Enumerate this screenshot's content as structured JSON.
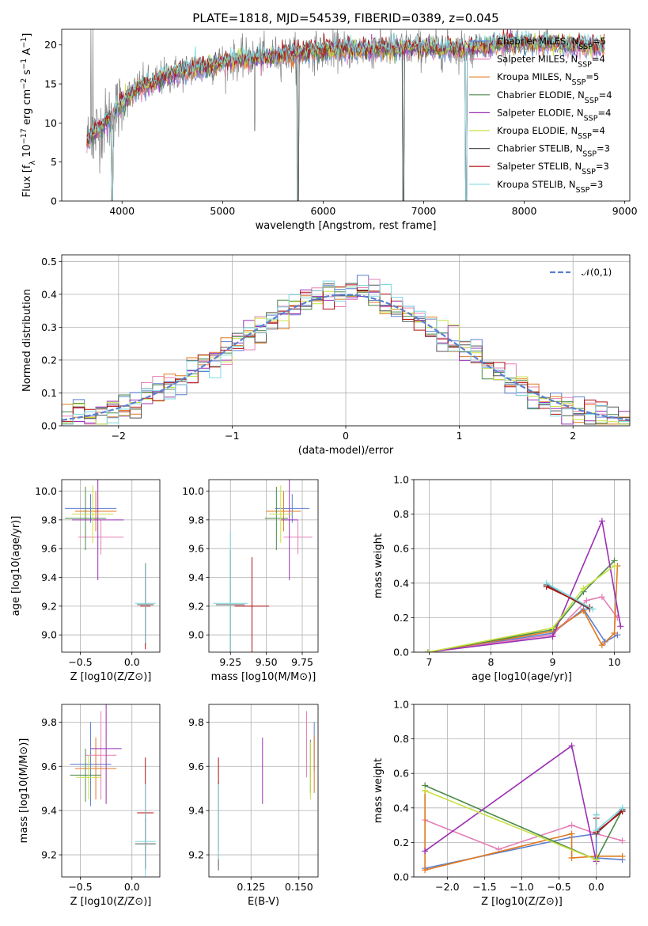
{
  "figure": {
    "title": "PLATE=1818, MJD=54539, FIBERID=0389, z=0.045"
  },
  "colors": {
    "Chabrier MILES": "#5b7fd0",
    "Salpeter MILES": "#e57fb5",
    "Kroupa MILES": "#e07a20",
    "Chabrier ELODIE": "#4a8a4a",
    "Salpeter ELODIE": "#9b30b4",
    "Kroupa ELODIE": "#c8e040",
    "Chabrier STELIB": "#555555",
    "Salpeter STELIB": "#b01010",
    "Kroupa STELIB": "#7fd8e0",
    "normal": "#5b7fd0",
    "grid": "#b0b0b0"
  },
  "chart_data": [
    {
      "id": "spectrum",
      "type": "line",
      "title": "PLATE=1818, MJD=54539, FIBERID=0389, z=0.045",
      "xlabel": "wavelength [Angstrom, rest frame]",
      "ylabel": "Flux [f_λ 10^-17 erg cm^-2 s^-1 A^-1]",
      "xlim": [
        3400,
        9050
      ],
      "ylim": [
        0,
        22
      ],
      "xticks": [
        4000,
        5000,
        6000,
        7000,
        8000,
        9000
      ],
      "yticks": [
        0,
        5,
        10,
        15,
        20
      ],
      "grid": false,
      "legend_position": "right",
      "legend": [
        "Chabrier MILES, N_SSP=5",
        "Salpeter MILES, N_SSP=4",
        "Kroupa MILES, N_SSP=5",
        "Chabrier ELODIE, N_SSP=4",
        "Salpeter ELODIE, N_SSP=4",
        "Kroupa ELODIE, N_SSP=4",
        "Chabrier STELIB, N_SSP=3",
        "Salpeter STELIB, N_SSP=3",
        "Kroupa STELIB, N_SSP=3"
      ],
      "continuum": {
        "x": [
          3650,
          3700,
          3800,
          3900,
          4000,
          4100,
          4200,
          4300,
          4400,
          4600,
          4800,
          5000,
          5200,
          5400,
          5600,
          5800,
          6000,
          6200,
          6400,
          6600,
          6800,
          7000,
          7200,
          7400,
          7600,
          7800,
          8000,
          8200,
          8400,
          8600,
          8800
        ],
        "y": [
          7.5,
          8.5,
          9.5,
          11.0,
          12.5,
          13.8,
          14.8,
          15.0,
          15.8,
          16.6,
          17.2,
          17.8,
          18.2,
          18.5,
          18.7,
          19.0,
          19.3,
          19.4,
          19.4,
          19.5,
          19.6,
          19.6,
          19.5,
          19.6,
          19.8,
          20.1,
          20.3,
          20.2,
          20.0,
          19.9,
          19.8
        ]
      },
      "model_drops_at": [
        3900,
        5750,
        6800,
        7420
      ],
      "noise_drop_at": 5320
    },
    {
      "id": "residual-histogram",
      "type": "histogram",
      "xlabel": "(data-model)/error",
      "ylabel": "Normed distribution",
      "xlim": [
        -2.5,
        2.5
      ],
      "ylim": [
        0,
        0.52
      ],
      "xticks": [
        -2,
        -1,
        0,
        1,
        2
      ],
      "yticks": [
        0.0,
        0.1,
        0.2,
        0.3,
        0.4,
        0.5
      ],
      "grid": true,
      "legend_position": "top-right",
      "legend": [
        "𝒩(0,1)"
      ],
      "bin_width": 0.1,
      "normal_curve": {
        "mean": 0,
        "sigma": 1
      }
    },
    {
      "id": "age-vs-Z",
      "type": "errorbar",
      "xlabel": "Z [log10(Z/Z⊙)]",
      "ylabel": "age  [log10(age/yr)]",
      "xlim": [
        -0.68,
        0.27
      ],
      "ylim": [
        8.88,
        10.08
      ],
      "xticks": [
        -0.5,
        0.0
      ],
      "xtick_labels": [
        "−0.5",
        "0.0"
      ],
      "yticks": [
        9.0,
        9.2,
        9.4,
        9.6,
        9.8,
        10.0
      ],
      "grid": true,
      "points": [
        {
          "model": "Chabrier MILES",
          "x": -0.4,
          "xerr": 0.25,
          "y": 9.88,
          "yerr": 0.1
        },
        {
          "model": "Salpeter MILES",
          "x": -0.3,
          "xerr": 0.22,
          "y": 9.68,
          "yerr": 0.12
        },
        {
          "model": "Kroupa MILES",
          "x": -0.35,
          "xerr": 0.2,
          "y": 9.86,
          "yerr": 0.14
        },
        {
          "model": "Chabrier ELODIE",
          "x": -0.45,
          "xerr": 0.2,
          "y": 9.81,
          "yerr": 0.22
        },
        {
          "model": "Salpeter ELODIE",
          "x": -0.33,
          "xerr": 0.25,
          "y": 9.8,
          "yerr": 0.42
        },
        {
          "model": "Kroupa ELODIE",
          "x": -0.38,
          "xerr": 0.2,
          "y": 9.84,
          "yerr": 0.2
        },
        {
          "model": "Chabrier STELIB",
          "x": 0.13,
          "xerr": 0.08,
          "y": 9.21,
          "yerr": 0.28
        },
        {
          "model": "Salpeter STELIB",
          "x": 0.13,
          "xerr": 0.05,
          "y": 9.2,
          "yerr": 0.3
        },
        {
          "model": "Kroupa STELIB",
          "x": 0.13,
          "xerr": 0.1,
          "y": 9.22,
          "yerr": 0.28
        }
      ]
    },
    {
      "id": "age-vs-mass",
      "type": "errorbar",
      "xlabel": "mass [log10(M/M⊙)]",
      "ylabel": "",
      "xlim": [
        9.1,
        9.86
      ],
      "ylim": [
        8.88,
        10.08
      ],
      "xticks": [
        9.25,
        9.5,
        9.75
      ],
      "yticks": [
        9.0,
        9.2,
        9.4,
        9.6,
        9.8,
        10.0
      ],
      "grid": true,
      "points": [
        {
          "model": "Chabrier MILES",
          "x": 9.68,
          "xerr": 0.12,
          "y": 9.88,
          "yerr": 0.1
        },
        {
          "model": "Salpeter MILES",
          "x": 9.72,
          "xerr": 0.1,
          "y": 9.68,
          "yerr": 0.12
        },
        {
          "model": "Kroupa MILES",
          "x": 9.62,
          "xerr": 0.12,
          "y": 9.86,
          "yerr": 0.14
        },
        {
          "model": "Chabrier ELODIE",
          "x": 9.57,
          "xerr": 0.08,
          "y": 9.81,
          "yerr": 0.22
        },
        {
          "model": "Salpeter ELODIE",
          "x": 9.66,
          "xerr": 0.06,
          "y": 9.8,
          "yerr": 0.42
        },
        {
          "model": "Kroupa ELODIE",
          "x": 9.6,
          "xerr": 0.08,
          "y": 9.84,
          "yerr": 0.2
        },
        {
          "model": "Chabrier STELIB",
          "x": 9.25,
          "xerr": 0.1,
          "y": 9.21,
          "yerr": 0.38
        },
        {
          "model": "Salpeter STELIB",
          "x": 9.4,
          "xerr": 0.12,
          "y": 9.2,
          "yerr": 0.34
        },
        {
          "model": "Kroupa STELIB",
          "x": 9.25,
          "xerr": 0.12,
          "y": 9.22,
          "yerr": 0.5
        }
      ]
    },
    {
      "id": "weight-vs-age",
      "type": "line",
      "xlabel": "age  [log10(age/yr)]",
      "ylabel": "mass weight",
      "xlim": [
        6.75,
        10.25
      ],
      "ylim": [
        0,
        1.0
      ],
      "xticks": [
        7,
        8,
        9,
        10
      ],
      "yticks": [
        0.0,
        0.2,
        0.4,
        0.6,
        0.8,
        1.0
      ],
      "grid": true,
      "series": [
        {
          "model": "Chabrier MILES",
          "x": [
            6.98,
            9.0,
            9.5,
            9.85,
            10.05
          ],
          "y": [
            0.0,
            0.11,
            0.25,
            0.06,
            0.1
          ]
        },
        {
          "model": "Salpeter MILES",
          "x": [
            6.98,
            9.0,
            9.55,
            9.8,
            10.05
          ],
          "y": [
            0.0,
            0.1,
            0.3,
            0.32,
            0.2
          ]
        },
        {
          "model": "Kroupa MILES",
          "x": [
            6.98,
            9.0,
            9.5,
            9.8,
            10.0,
            10.05
          ],
          "y": [
            0.0,
            0.12,
            0.24,
            0.04,
            0.11,
            0.5
          ]
        },
        {
          "model": "Chabrier ELODIE",
          "x": [
            6.98,
            9.0,
            9.5,
            10.0
          ],
          "y": [
            0.0,
            0.13,
            0.35,
            0.53
          ]
        },
        {
          "model": "Salpeter ELODIE",
          "x": [
            6.98,
            9.0,
            9.8,
            10.1
          ],
          "y": [
            0.0,
            0.09,
            0.76,
            0.15
          ]
        },
        {
          "model": "Kroupa ELODIE",
          "x": [
            6.98,
            9.0,
            9.5,
            10.0
          ],
          "y": [
            0.0,
            0.14,
            0.37,
            0.5
          ]
        },
        {
          "model": "Chabrier STELIB",
          "x": [
            8.9,
            9.6
          ],
          "y": [
            0.39,
            0.25
          ]
        },
        {
          "model": "Salpeter STELIB",
          "x": [
            8.9,
            9.6
          ],
          "y": [
            0.38,
            0.26
          ]
        },
        {
          "model": "Kroupa STELIB",
          "x": [
            8.9,
            9.65
          ],
          "y": [
            0.4,
            0.25
          ]
        }
      ]
    },
    {
      "id": "mass-vs-Z",
      "type": "errorbar",
      "xlabel": "Z [log10(Z/Z⊙)]",
      "ylabel": "mass [log10(M/M⊙)]",
      "xlim": [
        -0.68,
        0.27
      ],
      "ylim": [
        9.1,
        9.88
      ],
      "xticks": [
        -0.5,
        0.0
      ],
      "xtick_labels": [
        "−0.5",
        "0.0"
      ],
      "yticks": [
        9.2,
        9.4,
        9.6,
        9.8
      ],
      "grid": true,
      "points": [
        {
          "model": "Chabrier MILES",
          "x": -0.4,
          "xerr": 0.2,
          "y": 9.61,
          "yerr": 0.19
        },
        {
          "model": "Salpeter MILES",
          "x": -0.3,
          "xerr": 0.15,
          "y": 9.65,
          "yerr": 0.2
        },
        {
          "model": "Kroupa MILES",
          "x": -0.35,
          "xerr": 0.2,
          "y": 9.59,
          "yerr": 0.14
        },
        {
          "model": "Chabrier ELODIE",
          "x": -0.45,
          "xerr": 0.15,
          "y": 9.56,
          "yerr": 0.12
        },
        {
          "model": "Salpeter ELODIE",
          "x": -0.25,
          "xerr": 0.15,
          "y": 9.68,
          "yerr": 0.25
        },
        {
          "model": "Kroupa ELODIE",
          "x": -0.42,
          "xerr": 0.12,
          "y": 9.55,
          "yerr": 0.1
        },
        {
          "model": "Chabrier STELIB",
          "x": 0.13,
          "xerr": 0.1,
          "y": 9.25,
          "yerr": 0.12
        },
        {
          "model": "Salpeter STELIB",
          "x": 0.13,
          "xerr": 0.08,
          "y": 9.39,
          "yerr": 0.25
        },
        {
          "model": "Kroupa STELIB",
          "x": 0.13,
          "xerr": 0.1,
          "y": 9.26,
          "yerr": 0.26
        }
      ]
    },
    {
      "id": "mass-vs-EBV",
      "type": "errorbar",
      "xlabel": "E(B-V)",
      "ylabel": "",
      "xlim": [
        0.103,
        0.16
      ],
      "ylim": [
        9.1,
        9.88
      ],
      "xticks": [
        0.125,
        0.15
      ],
      "yticks": [
        9.2,
        9.4,
        9.6,
        9.8
      ],
      "grid": true,
      "points": [
        {
          "model": "Chabrier MILES",
          "x": 0.158,
          "xerr": 0,
          "y": 9.69,
          "yerr": 0.11
        },
        {
          "model": "Salpeter MILES",
          "x": 0.154,
          "xerr": 0,
          "y": 9.7,
          "yerr": 0.15
        },
        {
          "model": "Kroupa MILES",
          "x": 0.158,
          "xerr": 0,
          "y": 9.61,
          "yerr": 0.13
        },
        {
          "model": "Chabrier ELODIE",
          "x": 0.156,
          "xerr": 0,
          "y": 9.6,
          "yerr": 0.12
        },
        {
          "model": "Salpeter ELODIE",
          "x": 0.131,
          "xerr": 0,
          "y": 9.58,
          "yerr": 0.15
        },
        {
          "model": "Kroupa ELODIE",
          "x": 0.156,
          "xerr": 0,
          "y": 9.58,
          "yerr": 0.13
        },
        {
          "model": "Chabrier STELIB",
          "x": 0.108,
          "xerr": 0,
          "y": 9.33,
          "yerr": 0.2
        },
        {
          "model": "Salpeter STELIB",
          "x": 0.108,
          "xerr": 0,
          "y": 9.43,
          "yerr": 0.21
        },
        {
          "model": "Kroupa STELIB",
          "x": 0.108,
          "xerr": 0,
          "y": 9.35,
          "yerr": 0.17
        }
      ]
    },
    {
      "id": "weight-vs-Z",
      "type": "line",
      "xlabel": "Z [log10(Z/Z⊙)]",
      "ylabel": "mass weight",
      "xlim": [
        -2.45,
        0.45
      ],
      "ylim": [
        0,
        1.0
      ],
      "xticks": [
        -2.0,
        -1.5,
        -1.0,
        -0.5,
        0.0
      ],
      "xtick_labels": [
        "−2.0",
        "−1.5",
        "−1.0",
        "−0.5",
        "0.0"
      ],
      "yticks": [
        0.0,
        0.2,
        0.4,
        0.6,
        0.8,
        1.0
      ],
      "grid": true,
      "series": [
        {
          "model": "Chabrier MILES",
          "x": [
            -2.3,
            -0.33,
            0.0,
            0.0,
            0.35
          ],
          "y": [
            0.05,
            0.23,
            0.25,
            0.11,
            0.1
          ]
        },
        {
          "model": "Salpeter MILES",
          "x": [
            -2.3,
            -1.31,
            -0.33,
            0.0,
            0.35
          ],
          "y": [
            0.33,
            0.16,
            0.3,
            0.25,
            0.21
          ]
        },
        {
          "model": "Kroupa MILES",
          "x": [
            -2.3,
            -2.3,
            -0.33,
            -0.33,
            0.0,
            0.35
          ],
          "y": [
            0.5,
            0.04,
            0.25,
            0.11,
            0.12,
            0.12
          ]
        },
        {
          "model": "Chabrier ELODIE",
          "x": [
            -2.3,
            0.0,
            0.35
          ],
          "y": [
            0.53,
            0.1,
            0.39
          ]
        },
        {
          "model": "Salpeter ELODIE",
          "x": [
            -2.3,
            -0.33,
            0.0
          ],
          "y": [
            0.15,
            0.76,
            0.09
          ]
        },
        {
          "model": "Kroupa ELODIE",
          "x": [
            -2.3,
            0.0
          ],
          "y": [
            0.5,
            0.1
          ]
        },
        {
          "model": "Chabrier STELIB",
          "x": [
            0.0,
            0.0,
            0.35
          ],
          "y": [
            0.36,
            0.25,
            0.39
          ]
        },
        {
          "model": "Salpeter STELIB",
          "x": [
            0.0,
            0.0,
            0.35
          ],
          "y": [
            0.34,
            0.26,
            0.38
          ]
        },
        {
          "model": "Kroupa STELIB",
          "x": [
            0.0,
            0.0,
            0.35
          ],
          "y": [
            0.36,
            0.27,
            0.4
          ]
        }
      ]
    }
  ]
}
